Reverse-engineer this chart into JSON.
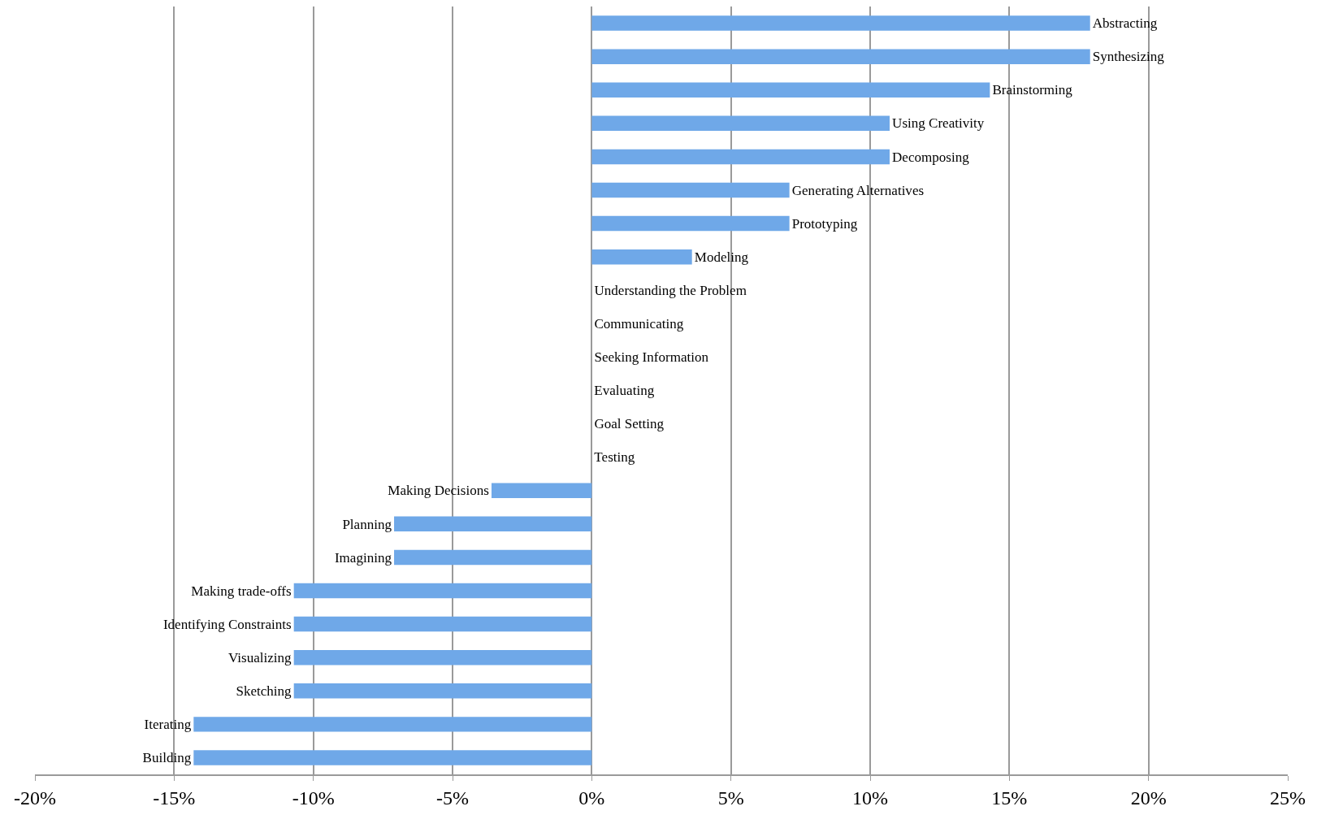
{
  "chart_data": {
    "type": "bar",
    "orientation": "horizontal",
    "categories": [
      "Abstracting",
      "Synthesizing",
      "Brainstorming",
      "Using Creativity",
      "Decomposing",
      "Generating Alternatives",
      "Prototyping",
      "Modeling",
      "Understanding the Problem",
      "Communicating",
      "Seeking Information",
      "Evaluating",
      "Goal Setting",
      "Testing",
      "Making Decisions",
      "Planning",
      "Imagining",
      "Making trade-offs",
      "Identifying Constraints",
      "Visualizing",
      "Sketching",
      "Iterating",
      "Building"
    ],
    "values": [
      17.9,
      17.9,
      14.3,
      10.7,
      10.7,
      7.1,
      7.1,
      3.6,
      0,
      0,
      0,
      0,
      0,
      0,
      -3.6,
      -7.1,
      -7.1,
      -10.7,
      -10.7,
      -10.7,
      -10.7,
      -14.3,
      -14.3
    ],
    "color": "#6fa8e8",
    "xlim": [
      -20,
      25
    ],
    "xticks": [
      {
        "value": -20,
        "label": "-20%"
      },
      {
        "value": -15,
        "label": "-15%"
      },
      {
        "value": -10,
        "label": "-10%"
      },
      {
        "value": -5,
        "label": "-5%"
      },
      {
        "value": 0,
        "label": "0%"
      },
      {
        "value": 5,
        "label": "5%"
      },
      {
        "value": 10,
        "label": "10%"
      },
      {
        "value": 15,
        "label": "15%"
      },
      {
        "value": 20,
        "label": "20%"
      },
      {
        "value": 25,
        "label": "25%"
      }
    ],
    "grid": "x"
  }
}
